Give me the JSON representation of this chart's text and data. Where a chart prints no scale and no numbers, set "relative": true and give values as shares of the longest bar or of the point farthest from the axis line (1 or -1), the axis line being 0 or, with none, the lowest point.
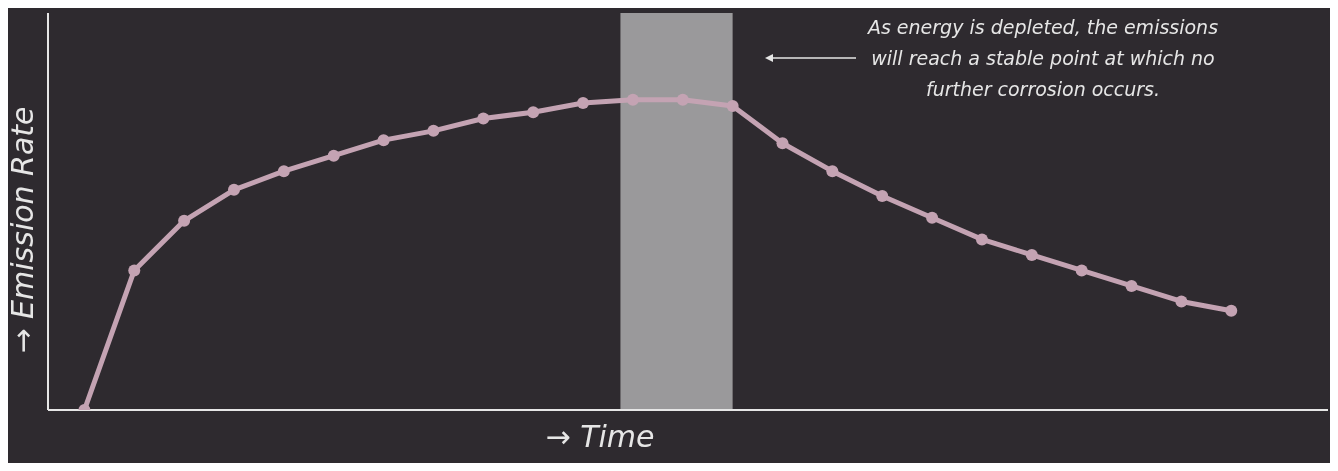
{
  "chart_data": {
    "type": "line",
    "relative": true,
    "xlabel": "→ Time",
    "ylabel": "→ Emission Rate",
    "annotations": [
      "As energy is depleted, the emissions will reach a stable point at which no further corrosion occurs."
    ],
    "categories": [
      null,
      null,
      null,
      null,
      null,
      null,
      null,
      null,
      null,
      null,
      null,
      null,
      null,
      null,
      null,
      null,
      null,
      null,
      null,
      null,
      null,
      null,
      null,
      null
    ],
    "series": [
      {
        "color": "#c4a3b3",
        "values": [
          0,
          0.45,
          0.61,
          0.71,
          0.77,
          0.82,
          0.87,
          0.9,
          0.94,
          0.96,
          0.99,
          1,
          1,
          0.98,
          0.86,
          0.77,
          0.69,
          0.62,
          0.55,
          0.5,
          0.45,
          0.4,
          0.35,
          0.32
        ]
      }
    ],
    "marker": "circle",
    "line_style": "solid"
  }
}
